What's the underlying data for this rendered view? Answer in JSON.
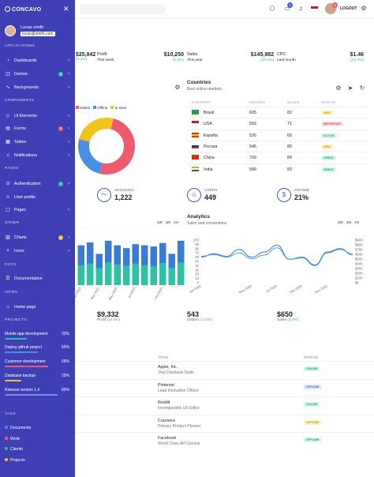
{
  "colors": {
    "sidebar": "#3f3fb5",
    "accent": "#3d5bd9",
    "bar_blue": "#3a7bd5",
    "bar_teal": "#2dc2a4",
    "line1": "#4a72d8",
    "line2": "#4aa3c9"
  },
  "topbar": {
    "notif_count": "3",
    "msg_count": "2",
    "logout_label": "LOGOUT"
  },
  "sidebar": {
    "brand": "CONCAVO",
    "user_name": "Lucas smith",
    "user_email": "lucas@smith.com",
    "sections": {
      "applications": "APPLICATIONS",
      "components": "COMPONENTS",
      "pages": "PAGES",
      "other": "OTHER",
      "docs": "DOCS",
      "intro": "INTRO",
      "projects": "PROJECTS",
      "tags": "TAGS"
    },
    "items": [
      {
        "label": "Dashboards",
        "icon": "dashboard-icon"
      },
      {
        "label": "Demos",
        "icon": "demos-icon",
        "count": "5",
        "count_color": "#2dc2a4"
      },
      {
        "label": "Backgrounds",
        "icon": "backgrounds-icon"
      },
      {
        "label": "UI Elements",
        "icon": "ui-elements-icon"
      },
      {
        "label": "Forms",
        "icon": "forms-icon",
        "count": "5",
        "count_color": "#f05a6e"
      },
      {
        "label": "Tables",
        "icon": "tables-icon"
      },
      {
        "label": "Notifications",
        "icon": "bell-icon"
      },
      {
        "label": "Authentication",
        "icon": "lock-icon",
        "count": "7",
        "count_color": "#2dc2a4"
      },
      {
        "label": "User profile",
        "icon": "user-icon"
      },
      {
        "label": "Pages",
        "icon": "pages-icon"
      },
      {
        "label": "Charts",
        "icon": "charts-icon",
        "count": "2",
        "count_color": "#f0c419"
      },
      {
        "label": "Icons",
        "icon": "icons-icon"
      },
      {
        "label": "Documentation",
        "icon": "documentation-icon"
      },
      {
        "label": "Home page",
        "icon": "home-icon"
      }
    ],
    "projects": [
      {
        "name": "Mobile app development",
        "pct": "33%",
        "color": "#2dc2a4",
        "fill": 0.33
      },
      {
        "name": "Deploy github project",
        "pct": "50%",
        "color": "#4a90e2",
        "fill": 0.5
      },
      {
        "name": "Customer development",
        "pct": "66%",
        "color": "#f05a6e",
        "fill": 0.66
      },
      {
        "name": "Database backup",
        "pct": "25%",
        "color": "#f0c419",
        "fill": 0.25
      },
      {
        "name": "Release version 1.4",
        "pct": "80%",
        "color": "#7f8fe8",
        "fill": 0.8
      }
    ],
    "tags": [
      {
        "name": "Documents",
        "color": "#4a90e2"
      },
      {
        "name": "Work",
        "color": "#f05a6e"
      },
      {
        "name": "Clients",
        "color": "#2dc2a4"
      },
      {
        "name": "Projects",
        "color": "#f0c419"
      }
    ]
  },
  "stats": [
    {
      "value": "$25,842",
      "change": "(4.4%)",
      "change_color": "#2dc2a4"
    },
    {
      "label": "Profit",
      "sub": "This week",
      "value": "$10,250",
      "change": "(2.5%)",
      "change_color": "#2dc2a4"
    },
    {
      "label": "Sales",
      "sub": "This year",
      "value": "$145,982",
      "change": "(10.4%)",
      "change_color": "#2dc2a4"
    },
    {
      "label": "CPC",
      "sub": "Last month",
      "value": "$1.46",
      "change": "(15.4%)",
      "change_color": "#2dc2a4"
    }
  ],
  "donut_legend": [
    "Online",
    "Offline",
    "In store"
  ],
  "countries": {
    "title": "Countries",
    "subtitle": "Best online markets",
    "headers": [
      "COUNTRY",
      "ORDERS",
      "SALES",
      "STATUS"
    ],
    "rows": [
      {
        "country": "Brasil",
        "orders": "605",
        "sales": "82",
        "status": "NEW",
        "status_bg": "#fdf3c9",
        "status_fg": "#c79a00"
      },
      {
        "country": "USA",
        "orders": "593",
        "sales": "71",
        "status": "IMPORTANT",
        "status_bg": "#fde0e4",
        "status_fg": "#e0455a"
      },
      {
        "country": "España",
        "orders": "526",
        "sales": "65",
        "status": "ACTIVE",
        "status_bg": "#d5f5ec",
        "status_fg": "#1fa383"
      },
      {
        "country": "Россия",
        "orders": "545",
        "sales": "80",
        "status": "NEW",
        "status_bg": "#fdf3c9",
        "status_fg": "#c79a00"
      },
      {
        "country": "China",
        "orders": "709",
        "sales": "89",
        "status": "GREAT",
        "status_bg": "#d5f5ec",
        "status_fg": "#1fa383"
      },
      {
        "country": "India",
        "orders": "589",
        "sales": "83",
        "status": "GREAT",
        "status_bg": "#d5f5ec",
        "status_fg": "#1fa383"
      }
    ]
  },
  "kpis": [
    {
      "label": "SESSIONS",
      "value": "1,222",
      "icon": "activity-icon"
    },
    {
      "label": "USERS",
      "value": "449",
      "icon": "user-icon"
    },
    {
      "label": "INCOME",
      "value": "21%",
      "icon": "dollar-icon"
    }
  ],
  "bar_tabs": [
    "1W",
    "1M",
    "3M"
  ],
  "analytics": {
    "title": "Analytics",
    "subtitle": "Sales and conversions",
    "tabs": [
      "1W",
      "1M",
      "3M"
    ]
  },
  "footer_stats": [
    {
      "value": "$9,332",
      "label": "Profit",
      "change": "(22.5%)",
      "change_color": "#2dc2a4"
    },
    {
      "value": "543",
      "label": "Orders",
      "change": "(-1.5%)",
      "change_color": "#f05a6e"
    },
    {
      "value": "$650",
      "label": "Sales",
      "change": "(5.2%)",
      "change_color": "#2dc2a4"
    }
  ],
  "people": {
    "headers": [
      "TITLE",
      "STATUS"
    ],
    "rows": [
      {
        "name": "Apple, Inc.",
        "title": "Vital Database Dude",
        "status": "ONLINE",
        "bg": "#d5f5ec",
        "fg": "#1fa383"
      },
      {
        "name": "Pinterest",
        "title": "Lead Innovation Officer",
        "status": "OFFLINE",
        "bg": "#dbe8fb",
        "fg": "#3d6fd9"
      },
      {
        "name": "Reddit",
        "title": "Incomparable UX Editor",
        "status": "ONLINE",
        "bg": "#d5f5ec",
        "fg": "#1fa383"
      },
      {
        "name": "Coursera",
        "title": "Primary Product Pioneer",
        "status": "OFFLINE",
        "bg": "#fdf3c9",
        "fg": "#c79a00"
      },
      {
        "name": "Facebook",
        "title": "World Class API Genius",
        "status": "OFFLINE",
        "bg": "#d5f5ec",
        "fg": "#1fa383"
      }
    ]
  },
  "chart_data": [
    {
      "type": "pie",
      "categories": [
        "Online",
        "Offline",
        "In store"
      ],
      "values": [
        50,
        25,
        25
      ],
      "colors": [
        "#f05a6e",
        "#4a90e2",
        "#f0c419"
      ]
    },
    {
      "type": "bar",
      "x": [
        "Jan 2020",
        "Feb 2020",
        "Mar 2020",
        "Apr 2020",
        "May 2020",
        "Jun 2020",
        "Jul 2020",
        "Aug 2020",
        "Sep 2020",
        "Oct 2020",
        "Nov 2020",
        "Dec 2020"
      ],
      "x_tick_labels": [
        "Jan 2020",
        "Mar 2020",
        "May 2020",
        "Jul 2020",
        "Oct 2020"
      ],
      "series": [
        {
          "values": [
            70,
            75,
            55,
            78,
            70,
            65,
            72,
            70,
            68,
            74,
            55,
            78
          ],
          "color": "#3a7bd5"
        },
        {
          "values": [
            35,
            38,
            30,
            40,
            36,
            34,
            38,
            35,
            33,
            39,
            30,
            40
          ],
          "color": "#2dc2a4"
        }
      ],
      "ylim": [
        0,
        100
      ]
    },
    {
      "type": "line",
      "x": [
        "Jan 2020",
        "Feb 2020",
        "Mar 2020",
        "Apr 2020",
        "May 2020",
        "Jun 2020",
        "Jul 2020",
        "Aug 2020",
        "Sep 2020",
        "Oct 2020",
        "Nov 2020",
        "Dec 2020",
        "Jan 2021"
      ],
      "x_tick_labels": [
        "Jan 2020",
        "May 2020",
        "Jul 2020",
        "Sep 2020",
        "Nov 2020"
      ],
      "y_left_ticks": [
        "0",
        "10",
        "20",
        "30",
        "40",
        "50",
        "60",
        "70",
        "80",
        "90",
        "100"
      ],
      "y_right_ticks": [
        "$0",
        "$100",
        "$200",
        "$300",
        "$400",
        "$500",
        "$600",
        "$700",
        "$800",
        "$900"
      ],
      "series": [
        {
          "values": [
            60,
            68,
            62,
            78,
            60,
            72,
            88,
            55,
            60,
            42,
            72,
            80,
            65
          ],
          "color": "#4a72d8"
        },
        {
          "values": [
            62,
            66,
            60,
            70,
            56,
            65,
            82,
            55,
            58,
            40,
            70,
            78,
            68
          ],
          "color": "#4aa3c9"
        }
      ],
      "ylim": [
        0,
        100
      ]
    }
  ]
}
